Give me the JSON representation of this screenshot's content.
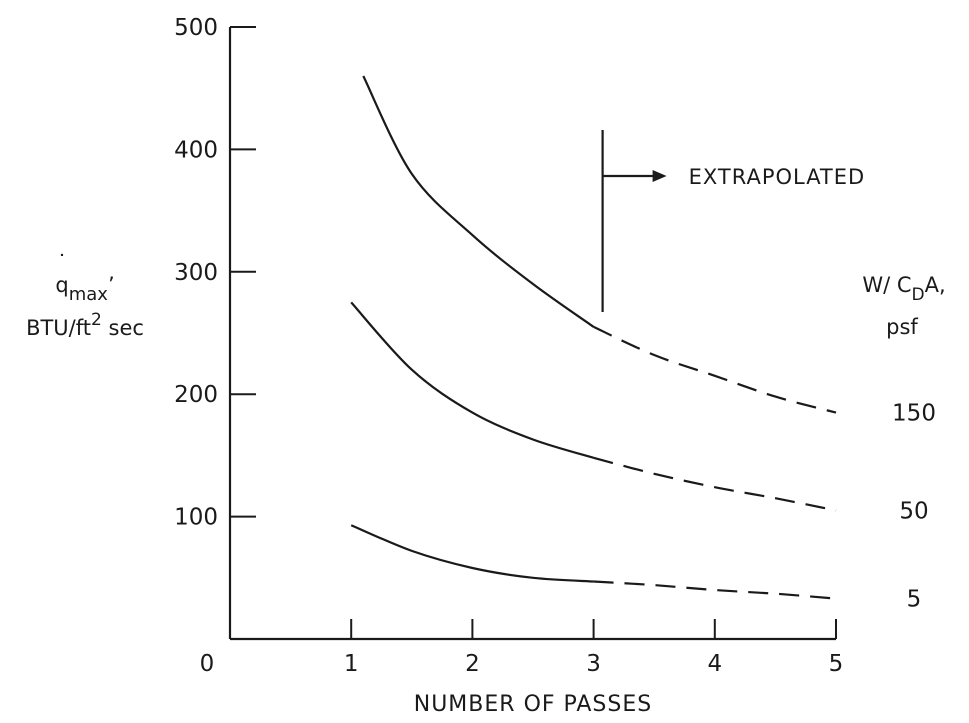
{
  "chart_data": {
    "type": "line",
    "title": "",
    "xlabel": "NUMBER OF PASSES",
    "ylabel": {
      "main": "q",
      "sub": "max",
      "trail": "’",
      "units_main": "BTU/ft",
      "units_sup": "2",
      "units_trail": " sec"
    },
    "xlim": [
      0,
      5
    ],
    "ylim": [
      0,
      500
    ],
    "xticks": [
      1,
      2,
      3,
      4,
      5
    ],
    "yticks": [
      0,
      100,
      200,
      300,
      400,
      500
    ],
    "origin_label": "0",
    "legend_title": {
      "line1_main": "W/ C",
      "line1_sub": "D",
      "line1_trail": "A,",
      "line2": "psf"
    },
    "extrapolation_start_x": 3,
    "annotation": "EXTRAPOLATED",
    "series": [
      {
        "name": "150",
        "x": [
          1.1,
          1.5,
          2.0,
          2.5,
          3.0,
          3.5,
          4.0,
          4.5,
          5.0
        ],
        "y": [
          460,
          380,
          330,
          290,
          255,
          232,
          215,
          198,
          185
        ]
      },
      {
        "name": "50",
        "x": [
          1.0,
          1.5,
          2.0,
          2.5,
          3.0,
          3.5,
          4.0,
          4.5,
          5.0
        ],
        "y": [
          275,
          220,
          185,
          163,
          148,
          135,
          124,
          115,
          105
        ]
      },
      {
        "name": "5",
        "x": [
          1.0,
          1.5,
          2.0,
          2.5,
          3.0,
          3.5,
          4.0,
          4.5,
          5.0
        ],
        "y": [
          93,
          72,
          58,
          50,
          47,
          44,
          40,
          37,
          33
        ]
      }
    ]
  }
}
